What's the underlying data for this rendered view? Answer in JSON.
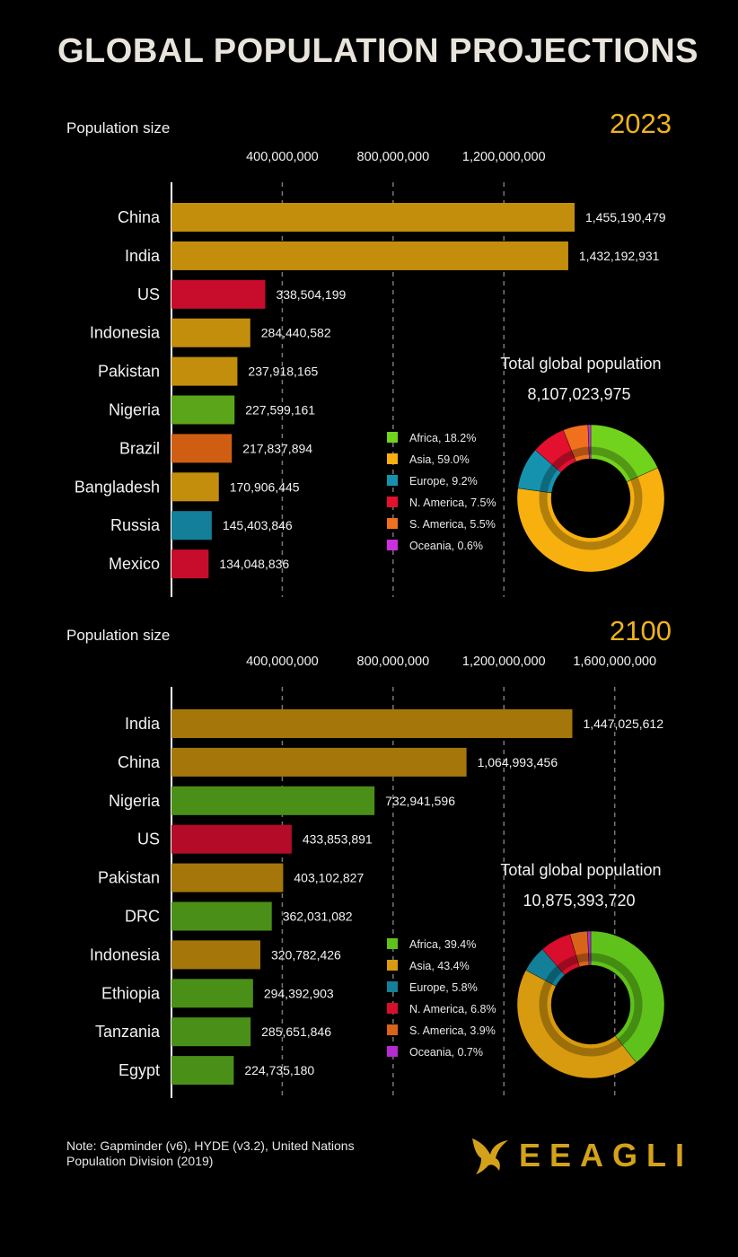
{
  "title": "GLOBAL POPULATION PROJECTIONS",
  "note": "Note: Gapminder (v6), HYDE (v3.2), United Nations Population Division (2019)",
  "brand": {
    "name": "EEAGLI",
    "icon": "eagle-icon"
  },
  "colors": {
    "background": "#000000",
    "year": "#f0b31c",
    "axis_line": "#ffffff",
    "grid": "#777777",
    "Africa": "#5bb71e",
    "Asia": "#c8900c",
    "Europe": "#137f99",
    "N. America": "#c40e2c",
    "S. America": "#d2601a",
    "Oceania": "#b62ad2"
  },
  "chart_data": [
    {
      "type": "bar",
      "orientation": "horizontal",
      "year": "2023",
      "axis_title": "Population size",
      "ticks": [
        "400,000,000",
        "800,000,000",
        "1,200,000,000"
      ],
      "tick_values": [
        400000000,
        800000000,
        1200000000
      ],
      "xlim": [
        0,
        1500000000
      ],
      "categories": [
        "China",
        "India",
        "US",
        "Indonesia",
        "Pakistan",
        "Nigeria",
        "Brazil",
        "Bangladesh",
        "Russia",
        "Mexico"
      ],
      "values": [
        1455190479,
        1432192931,
        338504199,
        284440582,
        237918165,
        227599161,
        217837894,
        170906445,
        145403846,
        134048836
      ],
      "value_labels": [
        "1,455,190,479",
        "1,432,192,931",
        "338,504,199",
        "284,440,582",
        "237,918,165",
        "227,599,161",
        "217,837,894",
        "170,906,445",
        "145,403,846",
        "134,048,836"
      ],
      "regions": [
        "Asia",
        "Asia",
        "N. America",
        "Asia",
        "Asia",
        "Africa",
        "S. America",
        "Asia",
        "Europe",
        "N. America"
      ],
      "bar_colors": [
        "#c48e0d",
        "#c48e0d",
        "#c70c2c",
        "#c48e0d",
        "#c48e0d",
        "#5aa51a",
        "#d05e12",
        "#c48e0d",
        "#137f99",
        "#c70c2c"
      ],
      "total_label": "Total global population",
      "total_value": "8,107,023,975",
      "legend_position": "left of donut",
      "donut": [
        {
          "label": "Africa, 18.2%",
          "region": "Africa",
          "value": 18.2,
          "color": "#72d31c"
        },
        {
          "label": "Asia, 59.0%",
          "region": "Asia",
          "value": 59.0,
          "color": "#f7b00e"
        },
        {
          "label": "Europe, 9.2%",
          "region": "Europe",
          "value": 9.2,
          "color": "#1592ae"
        },
        {
          "label": "N. America, 7.5%",
          "region": "N. America",
          "value": 7.5,
          "color": "#e4102f"
        },
        {
          "label": "S. America, 5.5%",
          "region": "S. America",
          "value": 5.5,
          "color": "#f0701e"
        },
        {
          "label": "Oceania, 0.6%",
          "region": "Oceania",
          "value": 0.6,
          "color": "#cc2fe0"
        }
      ]
    },
    {
      "type": "bar",
      "orientation": "horizontal",
      "year": "2100",
      "axis_title": "Population size",
      "ticks": [
        "400,000,000",
        "800,000,000",
        "1,200,000,000",
        "1,600,000,000"
      ],
      "tick_values": [
        400000000,
        800000000,
        1200000000,
        1600000000
      ],
      "xlim": [
        0,
        1800000000
      ],
      "categories": [
        "India",
        "China",
        "Nigeria",
        "US",
        "Pakistan",
        "DRC",
        "Indonesia",
        "Ethiopia",
        "Tanzania",
        "Egypt"
      ],
      "values": [
        1447025612,
        1064993456,
        732941596,
        433853891,
        403102827,
        362031082,
        320782426,
        294392903,
        285651846,
        224735180
      ],
      "value_labels": [
        "1,447,025,612",
        "1,064,993,456",
        "732,941,596",
        "433,853,891",
        "403,102,827",
        "362,031,082",
        "320,782,426",
        "294,392,903",
        "285,651,846",
        "224,735,180"
      ],
      "regions": [
        "Asia",
        "Asia",
        "Africa",
        "N. America",
        "Asia",
        "Africa",
        "Asia",
        "Africa",
        "Africa",
        "Africa"
      ],
      "bar_colors": [
        "#a5770b",
        "#a5770b",
        "#4a9018",
        "#b40c28",
        "#a5770b",
        "#4a9018",
        "#a5770b",
        "#4a9018",
        "#4a9018",
        "#4a9018"
      ],
      "total_label": "Total global population",
      "total_value": "10,875,393,720",
      "legend_position": "left of donut",
      "donut": [
        {
          "label": "Africa, 39.4%",
          "region": "Africa",
          "value": 39.4,
          "color": "#5fc21a"
        },
        {
          "label": "Asia, 43.4%",
          "region": "Asia",
          "value": 43.4,
          "color": "#d89a0e"
        },
        {
          "label": "Europe, 5.8%",
          "region": "Europe",
          "value": 5.8,
          "color": "#137f99"
        },
        {
          "label": "N. America, 6.8%",
          "region": "N. America",
          "value": 6.8,
          "color": "#d80e2c"
        },
        {
          "label": "S. America, 3.9%",
          "region": "S. America",
          "value": 3.9,
          "color": "#d8641a"
        },
        {
          "label": "Oceania, 0.7%",
          "region": "Oceania",
          "value": 0.7,
          "color": "#b62ad2"
        }
      ]
    }
  ]
}
